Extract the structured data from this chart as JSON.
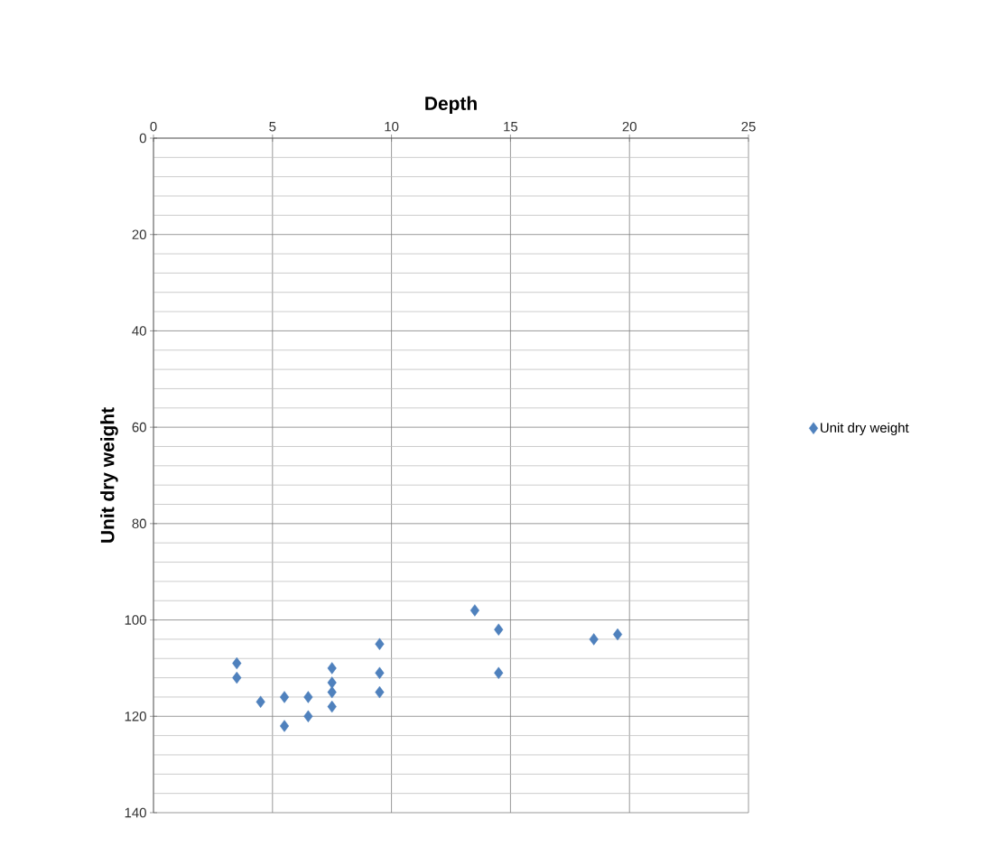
{
  "chart_data": {
    "type": "scatter",
    "xlabel": "Depth",
    "ylabel": "Unit dry weight",
    "series": [
      {
        "name": "Unit dry weight",
        "color": "#4f81bd",
        "x": [
          3.5,
          3.5,
          4.5,
          5.5,
          5.5,
          6.5,
          6.5,
          7.5,
          7.5,
          7.5,
          7.5,
          9.5,
          9.5,
          9.5,
          13.5,
          14.5,
          14.5,
          18.5,
          19.5
        ],
        "values": [
          109,
          112,
          117,
          116,
          122,
          116,
          120,
          110,
          113,
          115,
          118,
          105,
          111,
          115,
          98,
          102,
          111,
          104,
          103
        ]
      }
    ],
    "xlim": [
      0,
      25
    ],
    "xticks": [
      0,
      5,
      10,
      15,
      20,
      25
    ],
    "ylim": [
      140,
      0
    ],
    "yticks": [
      0,
      20,
      40,
      60,
      80,
      100,
      120,
      140
    ],
    "grid": true,
    "legend": "right",
    "marker": "diamond"
  }
}
